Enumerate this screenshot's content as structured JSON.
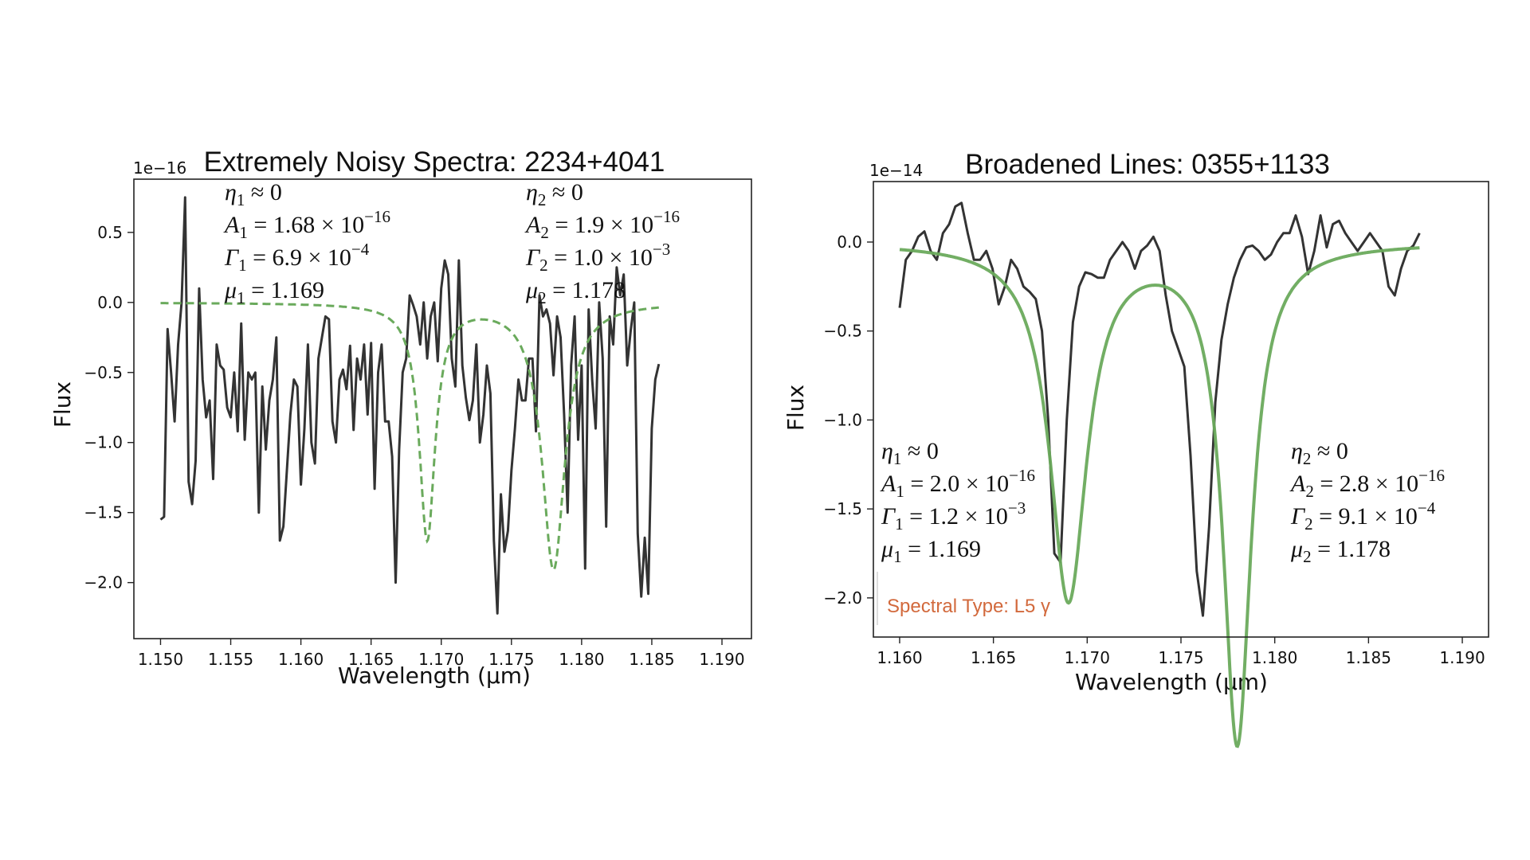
{
  "chart_data": [
    {
      "type": "line",
      "title": "Extremely Noisy Spectra: 2234+4041",
      "xlabel": "Wavelength (μm)",
      "ylabel": "Flux",
      "offset_text": "1e−16",
      "xlim": [
        1.1481,
        1.1921
      ],
      "ylim": [
        -2.4,
        0.88
      ],
      "x_ticks": [
        1.15,
        1.155,
        1.16,
        1.165,
        1.17,
        1.175,
        1.18,
        1.185,
        1.19
      ],
      "x_tick_labels": [
        "1.150",
        "1.155",
        "1.160",
        "1.165",
        "1.170",
        "1.175",
        "1.180",
        "1.185",
        "1.190"
      ],
      "y_ticks": [
        0.5,
        0.0,
        -0.5,
        -1.0,
        -1.5,
        -2.0
      ],
      "y_tick_labels": [
        "0.5",
        "0.0",
        "−0.5",
        "−1.0",
        "−1.5",
        "−2.0"
      ],
      "grid": false,
      "annotations": [
        {
          "lines": [
            [
              "η",
              "1",
              " ≈ 0",
              ""
            ],
            [
              "A",
              "1",
              " = 1.68 × 10",
              "−16"
            ],
            [
              "Γ",
              "1",
              " = 6.9 × 10",
              "−4"
            ],
            [
              "μ",
              "1",
              " = 1.169",
              ""
            ]
          ],
          "position": "top-left"
        },
        {
          "lines": [
            [
              "η",
              "2",
              " ≈ 0",
              ""
            ],
            [
              "A",
              "2",
              " = 1.9 × 10",
              "−16"
            ],
            [
              "Γ",
              "2",
              " = 1.0 × 10",
              "−3"
            ],
            [
              "μ",
              "2",
              " = 1.178",
              ""
            ]
          ],
          "position": "top-center"
        }
      ],
      "series": [
        {
          "style": "solid",
          "color": "#333333",
          "x_start": 1.15,
          "x_step": 0.00025,
          "values": [
            -1.55,
            -1.53,
            -0.19,
            -0.5,
            -0.85,
            -0.3,
            0.0,
            0.75,
            -1.28,
            -1.44,
            -1.13,
            0.1,
            -0.55,
            -0.82,
            -0.7,
            -1.26,
            -0.3,
            -0.45,
            -0.48,
            -0.75,
            -0.82,
            -0.5,
            -0.92,
            -0.15,
            -0.98,
            -0.5,
            -0.55,
            -0.5,
            -1.5,
            -0.6,
            -1.05,
            -0.7,
            -0.55,
            -0.25,
            -1.7,
            -1.6,
            -1.2,
            -0.8,
            -0.55,
            -0.6,
            -1.3,
            -0.9,
            -0.3,
            -1.0,
            -1.15,
            -0.4,
            -0.25,
            -0.1,
            -0.12,
            -0.85,
            -1.0,
            -0.55,
            -0.48,
            -0.62,
            -0.31,
            -0.91,
            -0.4,
            -0.55,
            -0.3,
            -0.8,
            -0.29,
            -1.33,
            -0.5,
            -0.3,
            -0.85,
            -0.85,
            -1.1,
            -2.0,
            -1.05,
            -0.5,
            -0.4,
            0.05,
            -0.02,
            -0.1,
            -0.3,
            0.0,
            -0.4,
            -0.1,
            0.0,
            -0.42,
            0.1,
            0.3,
            0.2,
            -0.4,
            -0.6,
            0.3,
            -0.45,
            -0.68,
            -0.84,
            -0.7,
            -0.3,
            -1.0,
            -0.8,
            -0.45,
            -0.65,
            -1.7,
            -2.22,
            -1.37,
            -1.78,
            -1.63,
            -1.2,
            -0.9,
            -0.55,
            -0.7,
            -0.7,
            -0.4,
            -0.4,
            -0.92,
            0.05,
            -0.1,
            -0.05,
            -0.15,
            -0.52,
            -0.1,
            -0.25,
            -0.8,
            -1.5,
            -0.45,
            -0.1,
            -0.98,
            -0.45,
            -1.9,
            -0.05,
            -0.55,
            -0.9,
            0.0,
            -0.4,
            -1.6,
            -0.1,
            -0.3,
            0.25,
            0.05,
            0.2,
            -0.45,
            -0.2,
            0.0,
            -1.65,
            -2.1,
            -1.68,
            -2.08,
            -0.9,
            -0.55,
            -0.44
          ]
        },
        {
          "style": "dashed",
          "color": "#6aaa5c",
          "model": "two-line fit",
          "lines": [
            {
              "A": 1.68,
              "gamma": 0.00069,
              "mu": 1.169
            },
            {
              "A": 1.9,
              "gamma": 0.001,
              "mu": 1.178
            }
          ]
        }
      ]
    },
    {
      "type": "line",
      "title": "Broadened Lines: 0355+1133",
      "xlabel": "Wavelength (μm)",
      "ylabel": "Flux",
      "offset_text": "1e−14",
      "xlim": [
        1.1586,
        1.1914
      ],
      "ylim": [
        -2.22,
        0.34
      ],
      "x_ticks": [
        1.16,
        1.165,
        1.17,
        1.175,
        1.18,
        1.185,
        1.19
      ],
      "x_tick_labels": [
        "1.160",
        "1.165",
        "1.170",
        "1.175",
        "1.180",
        "1.185",
        "1.190"
      ],
      "y_ticks": [
        0.0,
        -0.5,
        -1.0,
        -1.5,
        -2.0
      ],
      "y_tick_labels": [
        "0.0",
        "−0.5",
        "−1.0",
        "−1.5",
        "−2.0"
      ],
      "grid": false,
      "annotations": [
        {
          "lines": [
            [
              "η",
              "1",
              " ≈ 0",
              ""
            ],
            [
              "A",
              "1",
              " = 2.0 × 10",
              "−16"
            ],
            [
              "Γ",
              "1",
              " = 1.2 × 10",
              "−3"
            ],
            [
              "μ",
              "1",
              " = 1.169",
              ""
            ]
          ],
          "position": "bottom-left"
        },
        {
          "lines": [
            [
              "η",
              "2",
              " ≈ 0",
              ""
            ],
            [
              "A",
              "2",
              " = 2.8 × 10",
              "−16"
            ],
            [
              "Γ",
              "2",
              " = 9.1 × 10",
              "−4"
            ],
            [
              "μ",
              "2",
              " = 1.178",
              ""
            ]
          ],
          "position": "bottom-right"
        }
      ],
      "legend_text": "Spectral Type: L5 γ",
      "series": [
        {
          "style": "solid",
          "color": "#333333",
          "x_start": 1.16,
          "x_step": 0.00033,
          "values": [
            -0.37,
            -0.1,
            -0.05,
            0.03,
            0.06,
            -0.05,
            -0.1,
            0.05,
            0.1,
            0.2,
            0.22,
            0.05,
            -0.1,
            -0.1,
            -0.05,
            -0.15,
            -0.35,
            -0.25,
            -0.1,
            -0.15,
            -0.25,
            -0.28,
            -0.32,
            -0.5,
            -1.0,
            -1.75,
            -1.8,
            -1.0,
            -0.45,
            -0.25,
            -0.17,
            -0.18,
            -0.2,
            -0.2,
            -0.1,
            -0.05,
            0.0,
            -0.05,
            -0.15,
            -0.05,
            -0.02,
            0.03,
            -0.05,
            -0.3,
            -0.5,
            -0.6,
            -0.7,
            -1.2,
            -1.85,
            -2.1,
            -1.6,
            -0.9,
            -0.55,
            -0.35,
            -0.2,
            -0.1,
            -0.03,
            -0.02,
            -0.05,
            -0.1,
            -0.07,
            0.0,
            0.05,
            0.05,
            0.15,
            0.03,
            -0.18,
            -0.05,
            0.15,
            -0.03,
            0.1,
            0.12,
            0.05,
            0.0,
            -0.05,
            0.0,
            0.05,
            0.0,
            -0.05,
            -0.25,
            -0.3,
            -0.15,
            -0.05,
            -0.02,
            0.05
          ]
        },
        {
          "style": "solid",
          "color": "#6aaa5c",
          "model": "two-line fit",
          "lines": [
            {
              "A": 2.0,
              "gamma": 0.0012,
              "mu": 1.169
            },
            {
              "A": 2.8,
              "gamma": 0.00091,
              "mu": 1.178
            }
          ]
        }
      ]
    }
  ]
}
